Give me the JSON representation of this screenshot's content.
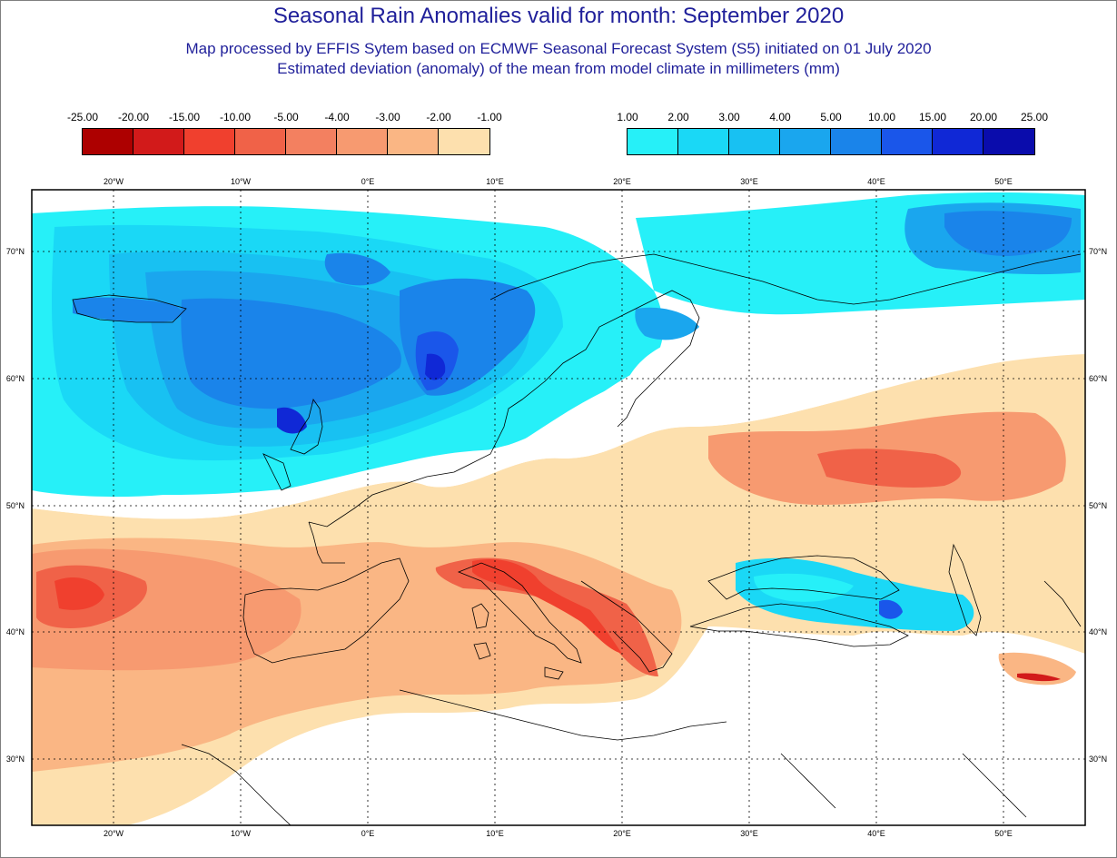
{
  "title": "Seasonal Rain Anomalies valid for month: September 2020",
  "subtitle1": "Map processed by EFFIS Sytem based on ECMWF Seasonal Forecast System (S5) initiated on 01 July 2020",
  "subtitle2": "Estimated deviation (anomaly) of the mean from model climate in millimeters (mm)",
  "legend": {
    "negative": {
      "labels": [
        "-25.00",
        "-20.00",
        "-15.00",
        "-10.00",
        "-5.00",
        "-4.00",
        "-3.00",
        "-2.00",
        "-1.00"
      ],
      "colors": [
        "#ad0000",
        "#d21a1a",
        "#f0402e",
        "#f06248",
        "#f38060",
        "#f79a70",
        "#fab684",
        "#fde0ae"
      ]
    },
    "positive": {
      "labels": [
        "1.00",
        "2.00",
        "3.00",
        "4.00",
        "5.00",
        "10.00",
        "15.00",
        "20.00",
        "25.00"
      ],
      "colors": [
        "#26f0f8",
        "#1ad8f6",
        "#18c1f2",
        "#1aa6ee",
        "#1a84ea",
        "#1a56ea",
        "#1028d6",
        "#0a0cac"
      ]
    }
  },
  "axes": {
    "lon_labels": [
      "20°W",
      "10°W",
      "0°E",
      "10°E",
      "20°E",
      "30°E",
      "40°E",
      "50°E"
    ],
    "lat_labels": [
      "70°N",
      "60°N",
      "50°N",
      "40°N",
      "30°N"
    ]
  }
}
